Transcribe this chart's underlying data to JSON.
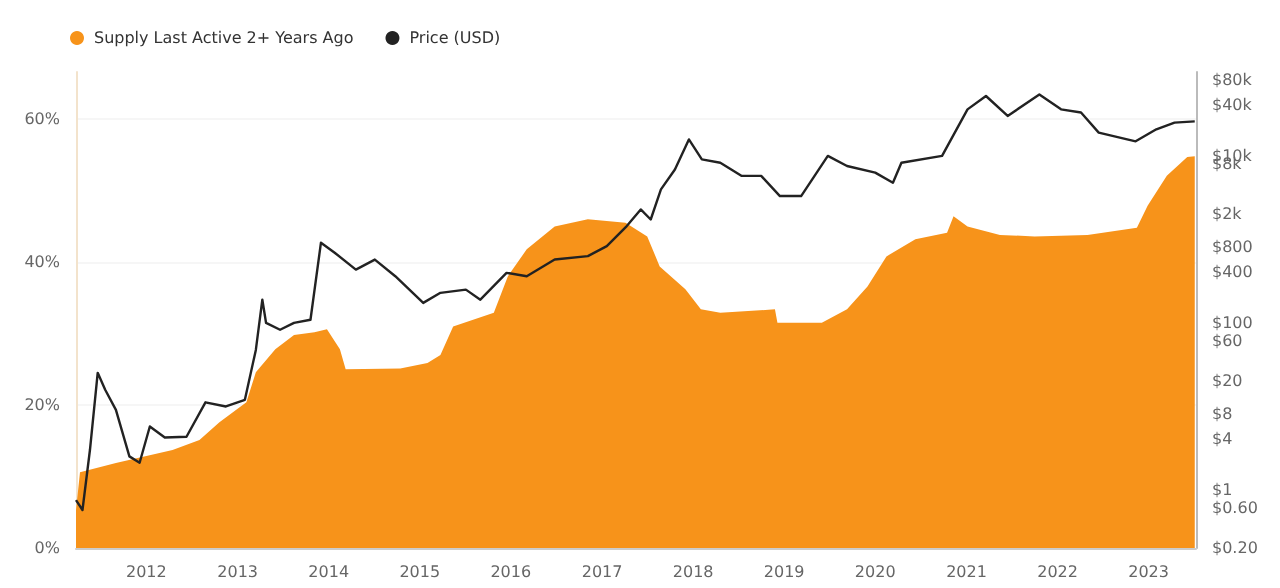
{
  "chart_data": {
    "type": "area",
    "series": [
      {
        "name": "Supply Last Active 2+ Years Ago",
        "color": "#f7931a",
        "axis": "y",
        "x": [
          "2011-03-25",
          "2011-04-10",
          "2011-09-01",
          "2012-04-15",
          "2012-08-01",
          "2012-10-20",
          "2013-02-05",
          "2013-03-15",
          "2013-06-01",
          "2013-08-15",
          "2013-11-05",
          "2013-12-25",
          "2014-02-15",
          "2014-03-10",
          "2014-10-15",
          "2015-02-01",
          "2015-03-25",
          "2015-05-15",
          "2015-10-25",
          "2015-12-20",
          "2016-03-05",
          "2016-06-25",
          "2016-11-05",
          "2017-04-05",
          "2017-07-01",
          "2017-08-20",
          "2017-12-01",
          "2018-02-01",
          "2018-04-20",
          "2018-11-25",
          "2018-12-05",
          "2019-06-01",
          "2019-09-10",
          "2019-12-01",
          "2020-02-15",
          "2020-06-10",
          "2020-10-15",
          "2020-11-10",
          "2021-01-05",
          "2021-05-15",
          "2021-10-01",
          "2022-05-01",
          "2022-11-15",
          "2022-12-28",
          "2023-03-15",
          "2023-06-05",
          "2023-07-05"
        ],
        "values": [
          5.3,
          10.6,
          11.9,
          13.7,
          15.1,
          17.6,
          20.4,
          24.6,
          27.8,
          29.8,
          30.2,
          30.6,
          27.8,
          25.0,
          25.1,
          25.9,
          27.0,
          31.0,
          32.9,
          38.0,
          41.8,
          45.0,
          46.0,
          45.5,
          43.6,
          39.4,
          36.2,
          33.4,
          32.9,
          33.4,
          31.5,
          31.5,
          33.4,
          36.6,
          40.8,
          43.2,
          44.1,
          46.4,
          45.0,
          43.8,
          43.6,
          43.8,
          44.8,
          47.9,
          52.1,
          54.7,
          54.8
        ]
      },
      {
        "name": "Price (USD)",
        "type": "line",
        "color": "#222222",
        "axis": "y2",
        "x": [
          "2011-03-25",
          "2011-04-20",
          "2011-05-20",
          "2011-06-20",
          "2011-07-20",
          "2011-09-01",
          "2011-10-25",
          "2011-12-05",
          "2012-01-15",
          "2012-03-15",
          "2012-06-10",
          "2012-08-25",
          "2012-11-15",
          "2013-01-30",
          "2013-03-15",
          "2013-04-10",
          "2013-04-25",
          "2013-06-20",
          "2013-08-15",
          "2013-10-20",
          "2013-12-01",
          "2014-01-25",
          "2014-04-20",
          "2014-07-05",
          "2014-09-25",
          "2015-01-15",
          "2015-03-25",
          "2015-07-05",
          "2015-09-01",
          "2015-12-15",
          "2016-03-05",
          "2016-06-25",
          "2016-11-05",
          "2017-01-20",
          "2017-04-10",
          "2017-06-05",
          "2017-07-15",
          "2017-08-25",
          "2017-10-20",
          "2017-12-15",
          "2018-02-05",
          "2018-04-20",
          "2018-07-15",
          "2018-10-01",
          "2018-12-15",
          "2019-03-10",
          "2019-06-25",
          "2019-09-10",
          "2020-01-01",
          "2020-03-12",
          "2020-04-15",
          "2020-09-25",
          "2021-01-05",
          "2021-03-20",
          "2021-06-15",
          "2021-10-20",
          "2022-01-15",
          "2022-04-05",
          "2022-06-15",
          "2022-11-10",
          "2023-02-01",
          "2023-04-15",
          "2023-07-05"
        ],
        "values": [
          0.75,
          0.57,
          3.0,
          25,
          15.7,
          9,
          2.5,
          2.1,
          5.7,
          4.2,
          4.3,
          11.1,
          9.9,
          11.9,
          47,
          188,
          99,
          82,
          99,
          108,
          904,
          686,
          431,
          568,
          359,
          172,
          227,
          248,
          188,
          394,
          359,
          568,
          624,
          822,
          1429,
          2260,
          1714,
          3930,
          6800,
          15600,
          9000,
          8200,
          5700,
          5700,
          3270,
          3270,
          9900,
          7500,
          6240,
          4730,
          8200,
          9900,
          35700,
          51600,
          29800,
          53700,
          35700,
          32700,
          18800,
          14800,
          20600,
          24800,
          25600
        ]
      }
    ],
    "xlim": [
      "2011-03-25",
      "2023-07-10"
    ],
    "xticks": [
      "2012",
      "2013",
      "2014",
      "2015",
      "2016",
      "2017",
      "2018",
      "2019",
      "2020",
      "2021",
      "2022",
      "2023"
    ],
    "ylim": [
      0,
      66.6
    ],
    "yticks": [
      {
        "value": 0,
        "label": "0%"
      },
      {
        "value": 20,
        "label": "20%"
      },
      {
        "value": 40,
        "label": "40%"
      },
      {
        "value": 60,
        "label": "60%"
      }
    ],
    "y2lim": [
      0.2,
      100000
    ],
    "y2ticks": [
      {
        "value": 0.2,
        "label": "$0.20"
      },
      {
        "value": 0.6,
        "label": "$0.60"
      },
      {
        "value": 1,
        "label": "$1"
      },
      {
        "value": 4,
        "label": "$4"
      },
      {
        "value": 8,
        "label": "$8"
      },
      {
        "value": 20,
        "label": "$20"
      },
      {
        "value": 60,
        "label": "$60"
      },
      {
        "value": 100,
        "label": "$100"
      },
      {
        "value": 400,
        "label": "$400"
      },
      {
        "value": 800,
        "label": "$800"
      },
      {
        "value": 2000,
        "label": "$2k"
      },
      {
        "value": 8000,
        "label": "$8k"
      },
      {
        "value": 10000,
        "label": "$10k"
      },
      {
        "value": 40000,
        "label": "$40k"
      },
      {
        "value": 80000,
        "label": "$80k"
      }
    ],
    "log": "y2",
    "grid": "y",
    "legend": "top left",
    "marker": "none",
    "line_style": "solid"
  }
}
